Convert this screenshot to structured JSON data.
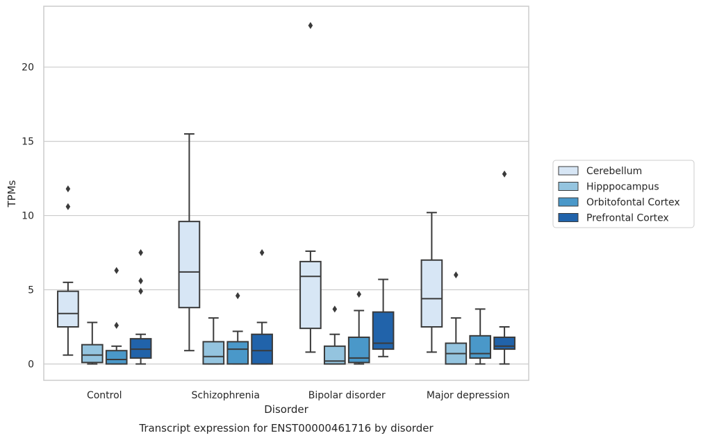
{
  "chart_data": {
    "type": "box",
    "caption": "Transcript expression for ENST00000461716 by disorder",
    "xlabel": "Disorder",
    "ylabel": "TPMs",
    "ylim": [
      -1.1,
      24.1
    ],
    "yticks": [
      0,
      5,
      10,
      15,
      20
    ],
    "grid": "horizontal",
    "legend_position": "right",
    "categories": [
      "Control",
      "Schizophrenia",
      "Bipolar disorder",
      "Major depression"
    ],
    "series": [
      {
        "name": "Cerebellum",
        "color": "#d7e6f5",
        "boxes": [
          {
            "whislo": 0.6,
            "q1": 2.5,
            "med": 3.4,
            "q3": 4.9,
            "whishi": 5.5,
            "fliers": [
              10.6,
              11.8
            ]
          },
          {
            "whislo": 0.9,
            "q1": 3.8,
            "med": 6.2,
            "q3": 9.6,
            "whishi": 15.5,
            "fliers": []
          },
          {
            "whislo": 0.8,
            "q1": 2.4,
            "med": 5.9,
            "q3": 6.9,
            "whishi": 7.6,
            "fliers": [
              22.8
            ]
          },
          {
            "whislo": 0.8,
            "q1": 2.5,
            "med": 4.4,
            "q3": 7.0,
            "whishi": 10.2,
            "fliers": []
          }
        ]
      },
      {
        "name": "Hipppocampus",
        "color": "#94c4df",
        "boxes": [
          {
            "whislo": 0.0,
            "q1": 0.1,
            "med": 0.6,
            "q3": 1.3,
            "whishi": 2.8,
            "fliers": []
          },
          {
            "whislo": 0.0,
            "q1": 0.0,
            "med": 0.5,
            "q3": 1.5,
            "whishi": 3.1,
            "fliers": []
          },
          {
            "whislo": 0.0,
            "q1": 0.0,
            "med": 0.2,
            "q3": 1.2,
            "whishi": 2.0,
            "fliers": [
              3.7
            ]
          },
          {
            "whislo": 0.0,
            "q1": 0.0,
            "med": 0.7,
            "q3": 1.4,
            "whishi": 3.1,
            "fliers": [
              6.0
            ]
          }
        ]
      },
      {
        "name": "Orbitofontal Cortex",
        "color": "#4a98c9",
        "boxes": [
          {
            "whislo": 0.0,
            "q1": 0.0,
            "med": 0.3,
            "q3": 0.9,
            "whishi": 1.2,
            "fliers": [
              2.6,
              6.3
            ]
          },
          {
            "whislo": 0.0,
            "q1": 0.0,
            "med": 1.0,
            "q3": 1.5,
            "whishi": 2.2,
            "fliers": [
              4.6
            ]
          },
          {
            "whislo": 0.0,
            "q1": 0.1,
            "med": 0.4,
            "q3": 1.8,
            "whishi": 3.6,
            "fliers": [
              4.7
            ]
          },
          {
            "whislo": 0.0,
            "q1": 0.4,
            "med": 0.7,
            "q3": 1.9,
            "whishi": 3.7,
            "fliers": []
          }
        ]
      },
      {
        "name": "Prefrontal Cortex",
        "color": "#2163aa",
        "boxes": [
          {
            "whislo": 0.0,
            "q1": 0.4,
            "med": 1.0,
            "q3": 1.7,
            "whishi": 2.0,
            "fliers": [
              4.9,
              5.6,
              7.5
            ]
          },
          {
            "whislo": 0.0,
            "q1": 0.0,
            "med": 0.9,
            "q3": 2.0,
            "whishi": 2.8,
            "fliers": [
              7.5
            ]
          },
          {
            "whislo": 0.5,
            "q1": 1.0,
            "med": 1.4,
            "q3": 3.5,
            "whishi": 5.7,
            "fliers": []
          },
          {
            "whislo": 0.0,
            "q1": 1.0,
            "med": 1.2,
            "q3": 1.8,
            "whishi": 2.5,
            "fliers": [
              12.8
            ]
          }
        ]
      }
    ]
  }
}
